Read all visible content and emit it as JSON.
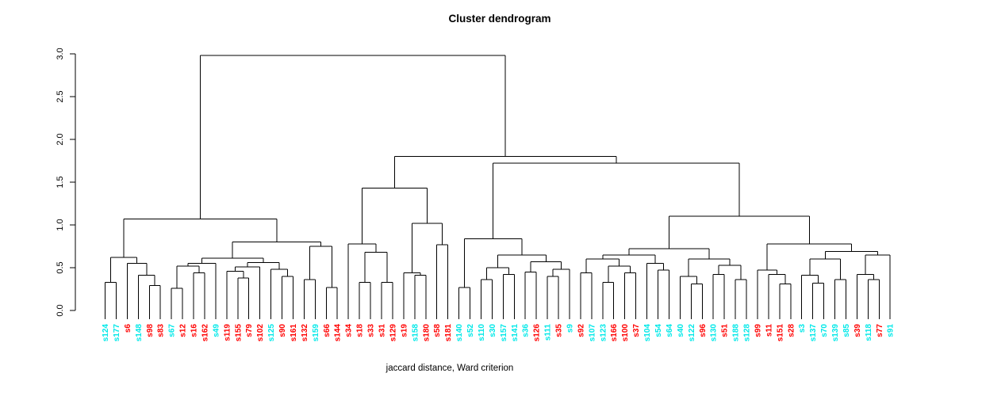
{
  "chart_data": {
    "type": "dendrogram",
    "title": "Cluster dendrogram",
    "xlabel": "jaccard distance, Ward criterion",
    "ylabel": "",
    "y_axis": {
      "ticks": [
        "0.0",
        "0.5",
        "1.0",
        "1.5",
        "2.0",
        "2.5",
        "3.0"
      ],
      "tick_values": [
        0,
        0.5,
        1,
        1.5,
        2,
        2.5,
        3
      ],
      "range": [
        0,
        3.0
      ]
    },
    "legend": "none",
    "grid": false,
    "leaf_colors_meaning": "leaf labels drawn in red or cyan",
    "leaves": [
      {
        "name": "s124",
        "color": "cyan"
      },
      {
        "name": "s177",
        "color": "cyan"
      },
      {
        "name": "s6",
        "color": "red"
      },
      {
        "name": "s148",
        "color": "cyan"
      },
      {
        "name": "s98",
        "color": "red"
      },
      {
        "name": "s83",
        "color": "red"
      },
      {
        "name": "s67",
        "color": "cyan"
      },
      {
        "name": "s12",
        "color": "red"
      },
      {
        "name": "s16",
        "color": "red"
      },
      {
        "name": "s162",
        "color": "red"
      },
      {
        "name": "s49",
        "color": "cyan"
      },
      {
        "name": "s119",
        "color": "red"
      },
      {
        "name": "s155",
        "color": "red"
      },
      {
        "name": "s79",
        "color": "red"
      },
      {
        "name": "s102",
        "color": "red"
      },
      {
        "name": "s125",
        "color": "cyan"
      },
      {
        "name": "s90",
        "color": "red"
      },
      {
        "name": "s161",
        "color": "red"
      },
      {
        "name": "s132",
        "color": "red"
      },
      {
        "name": "s159",
        "color": "cyan"
      },
      {
        "name": "s66",
        "color": "red"
      },
      {
        "name": "s144",
        "color": "red"
      },
      {
        "name": "s34",
        "color": "red"
      },
      {
        "name": "s18",
        "color": "red"
      },
      {
        "name": "s33",
        "color": "red"
      },
      {
        "name": "s31",
        "color": "red"
      },
      {
        "name": "s129",
        "color": "red"
      },
      {
        "name": "s19",
        "color": "red"
      },
      {
        "name": "s158",
        "color": "cyan"
      },
      {
        "name": "s180",
        "color": "red"
      },
      {
        "name": "s58",
        "color": "red"
      },
      {
        "name": "s181",
        "color": "red"
      },
      {
        "name": "s140",
        "color": "cyan"
      },
      {
        "name": "s52",
        "color": "cyan"
      },
      {
        "name": "s110",
        "color": "cyan"
      },
      {
        "name": "s30",
        "color": "cyan"
      },
      {
        "name": "s157",
        "color": "cyan"
      },
      {
        "name": "s141",
        "color": "cyan"
      },
      {
        "name": "s36",
        "color": "cyan"
      },
      {
        "name": "s126",
        "color": "red"
      },
      {
        "name": "s111",
        "color": "cyan"
      },
      {
        "name": "s35",
        "color": "red"
      },
      {
        "name": "s9",
        "color": "cyan"
      },
      {
        "name": "s92",
        "color": "red"
      },
      {
        "name": "s107",
        "color": "cyan"
      },
      {
        "name": "s123",
        "color": "cyan"
      },
      {
        "name": "s166",
        "color": "red"
      },
      {
        "name": "s100",
        "color": "red"
      },
      {
        "name": "s37",
        "color": "red"
      },
      {
        "name": "s104",
        "color": "cyan"
      },
      {
        "name": "s54",
        "color": "cyan"
      },
      {
        "name": "s64",
        "color": "cyan"
      },
      {
        "name": "s40",
        "color": "cyan"
      },
      {
        "name": "s122",
        "color": "cyan"
      },
      {
        "name": "s96",
        "color": "red"
      },
      {
        "name": "s130",
        "color": "cyan"
      },
      {
        "name": "s51",
        "color": "red"
      },
      {
        "name": "s188",
        "color": "cyan"
      },
      {
        "name": "s128",
        "color": "cyan"
      },
      {
        "name": "s99",
        "color": "red"
      },
      {
        "name": "s11",
        "color": "red"
      },
      {
        "name": "s151",
        "color": "red"
      },
      {
        "name": "s28",
        "color": "red"
      },
      {
        "name": "s3",
        "color": "cyan"
      },
      {
        "name": "s137",
        "color": "cyan"
      },
      {
        "name": "s70",
        "color": "cyan"
      },
      {
        "name": "s139",
        "color": "cyan"
      },
      {
        "name": "s85",
        "color": "cyan"
      },
      {
        "name": "s39",
        "color": "red"
      },
      {
        "name": "s118",
        "color": "cyan"
      },
      {
        "name": "s77",
        "color": "red"
      },
      {
        "name": "s91",
        "color": "cyan"
      }
    ],
    "tree": {
      "h": 2.98,
      "c": [
        {
          "h": 1.07,
          "c": [
            {
              "h": 0.62,
              "c": [
                {
                  "h": 0.33,
                  "c": [
                    "s124",
                    "s177"
                  ]
                },
                {
                  "h": 0.55,
                  "c": [
                    "s6",
                    {
                      "h": 0.41,
                      "c": [
                        "s148",
                        {
                          "h": 0.29,
                          "c": [
                            "s98",
                            "s83"
                          ]
                        }
                      ]
                    }
                  ]
                }
              ]
            },
            {
              "h": 0.8,
              "c": [
                {
                  "h": 0.61,
                  "c": [
                    {
                      "h": 0.55,
                      "c": [
                        {
                          "h": 0.52,
                          "c": [
                            {
                              "h": 0.26,
                              "c": [
                                "s67",
                                "s12"
                              ]
                            },
                            {
                              "h": 0.44,
                              "c": [
                                "s16",
                                "s162"
                              ]
                            }
                          ]
                        },
                        "s49"
                      ]
                    },
                    {
                      "h": 0.56,
                      "c": [
                        {
                          "h": 0.51,
                          "c": [
                            {
                              "h": 0.46,
                              "c": [
                                "s119",
                                {
                                  "h": 0.38,
                                  "c": [
                                    "s155",
                                    "s79"
                                  ]
                                }
                              ]
                            },
                            "s102"
                          ]
                        },
                        {
                          "h": 0.48,
                          "c": [
                            "s125",
                            {
                              "h": 0.4,
                              "c": [
                                "s90",
                                "s161"
                              ]
                            }
                          ]
                        }
                      ]
                    }
                  ]
                },
                {
                  "h": 0.75,
                  "c": [
                    {
                      "h": 0.36,
                      "c": [
                        "s132",
                        "s159"
                      ]
                    },
                    {
                      "h": 0.27,
                      "c": [
                        "s66",
                        "s144"
                      ]
                    }
                  ]
                }
              ]
            }
          ]
        },
        {
          "h": 1.8,
          "c": [
            {
              "h": 1.43,
              "c": [
                {
                  "h": 0.78,
                  "c": [
                    "s34",
                    {
                      "h": 0.68,
                      "c": [
                        {
                          "h": 0.33,
                          "c": [
                            "s18",
                            "s33"
                          ]
                        },
                        {
                          "h": 0.33,
                          "c": [
                            "s31",
                            "s129"
                          ]
                        }
                      ]
                    }
                  ]
                },
                {
                  "h": 1.02,
                  "c": [
                    {
                      "h": 0.44,
                      "c": [
                        "s19",
                        {
                          "h": 0.41,
                          "c": [
                            "s158",
                            "s180"
                          ]
                        }
                      ]
                    },
                    {
                      "h": 0.77,
                      "c": [
                        "s58",
                        "s181"
                      ]
                    }
                  ]
                }
              ]
            },
            {
              "h": 1.72,
              "c": [
                {
                  "h": 0.84,
                  "c": [
                    {
                      "h": 0.27,
                      "c": [
                        "s140",
                        "s52"
                      ]
                    },
                    {
                      "h": 0.65,
                      "c": [
                        {
                          "h": 0.5,
                          "c": [
                            {
                              "h": 0.36,
                              "c": [
                                "s110",
                                "s30"
                              ]
                            },
                            {
                              "h": 0.42,
                              "c": [
                                "s157",
                                "s141"
                              ]
                            }
                          ]
                        },
                        {
                          "h": 0.57,
                          "c": [
                            {
                              "h": 0.45,
                              "c": [
                                "s36",
                                "s126"
                              ]
                            },
                            {
                              "h": 0.48,
                              "c": [
                                {
                                  "h": 0.4,
                                  "c": [
                                    "s111",
                                    "s35"
                                  ]
                                },
                                "s9"
                              ]
                            }
                          ]
                        }
                      ]
                    }
                  ]
                },
                {
                  "h": 1.1,
                  "c": [
                    {
                      "h": 0.72,
                      "c": [
                        {
                          "h": 0.65,
                          "c": [
                            {
                              "h": 0.6,
                              "c": [
                                {
                                  "h": 0.44,
                                  "c": [
                                    "s92",
                                    "s107"
                                  ]
                                },
                                {
                                  "h": 0.52,
                                  "c": [
                                    {
                                      "h": 0.33,
                                      "c": [
                                        "s123",
                                        "s166"
                                      ]
                                    },
                                    {
                                      "h": 0.44,
                                      "c": [
                                        "s100",
                                        "s37"
                                      ]
                                    }
                                  ]
                                }
                              ]
                            },
                            {
                              "h": 0.55,
                              "c": [
                                "s104",
                                {
                                  "h": 0.47,
                                  "c": [
                                    "s54",
                                    "s64"
                                  ]
                                }
                              ]
                            }
                          ]
                        },
                        {
                          "h": 0.6,
                          "c": [
                            {
                              "h": 0.4,
                              "c": [
                                "s40",
                                {
                                  "h": 0.31,
                                  "c": [
                                    "s122",
                                    "s96"
                                  ]
                                }
                              ]
                            },
                            {
                              "h": 0.53,
                              "c": [
                                {
                                  "h": 0.42,
                                  "c": [
                                    "s130",
                                    "s51"
                                  ]
                                },
                                {
                                  "h": 0.36,
                                  "c": [
                                    "s188",
                                    "s128"
                                  ]
                                }
                              ]
                            }
                          ]
                        }
                      ]
                    },
                    {
                      "h": 0.78,
                      "c": [
                        {
                          "h": 0.47,
                          "c": [
                            "s99",
                            {
                              "h": 0.42,
                              "c": [
                                "s11",
                                {
                                  "h": 0.31,
                                  "c": [
                                    "s151",
                                    "s28"
                                  ]
                                }
                              ]
                            }
                          ]
                        },
                        {
                          "h": 0.69,
                          "c": [
                            {
                              "h": 0.6,
                              "c": [
                                {
                                  "h": 0.41,
                                  "c": [
                                    "s3",
                                    {
                                      "h": 0.32,
                                      "c": [
                                        "s137",
                                        "s70"
                                      ]
                                    }
                                  ]
                                },
                                {
                                  "h": 0.36,
                                  "c": [
                                    "s139",
                                    "s85"
                                  ]
                                }
                              ]
                            },
                            {
                              "h": 0.65,
                              "c": [
                                {
                                  "h": 0.42,
                                  "c": [
                                    "s39",
                                    {
                                      "h": 0.36,
                                      "c": [
                                        "s118",
                                        "s77"
                                      ]
                                    }
                                  ]
                                },
                                "s91"
                              ]
                            }
                          ]
                        }
                      ]
                    }
                  ]
                }
              ]
            }
          ]
        }
      ]
    }
  },
  "colors": {
    "red": "#FF0000",
    "cyan": "#00E8E8",
    "line": "#000000",
    "background": "#FFFFFF"
  }
}
